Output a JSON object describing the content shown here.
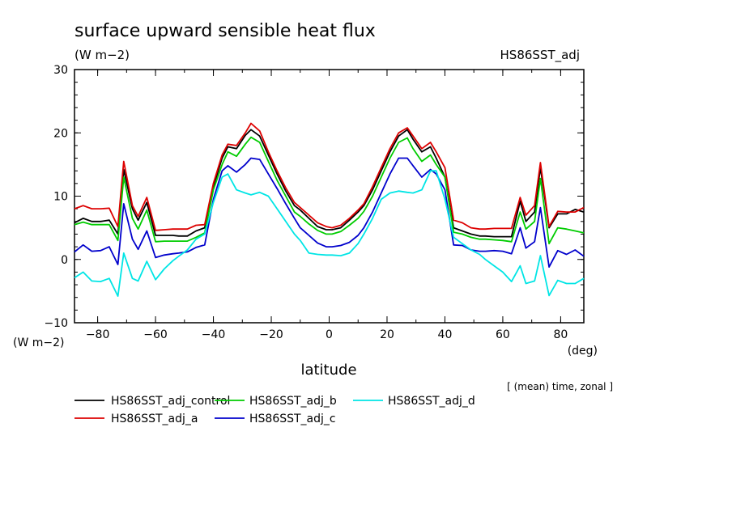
{
  "chart_data": {
    "type": "line",
    "title": "surface upward sensible heat flux",
    "units_label": "(W m−2)",
    "run_label": "HS86SST_adj",
    "y_unit_label": "(W m−2)",
    "x_unit_label": "(deg)",
    "xlabel": "latitude",
    "note": "[ (mean) time, zonal ]",
    "xlim": [
      -88,
      88
    ],
    "ylim": [
      -10,
      30
    ],
    "x_ticks": [
      -80,
      -60,
      -40,
      -20,
      0,
      20,
      40,
      60,
      80
    ],
    "x_tick_labels": [
      "−80",
      "−60",
      "−40",
      "−20",
      "0",
      "20",
      "40",
      "60",
      "80"
    ],
    "y_ticks": [
      -10,
      0,
      10,
      20,
      30
    ],
    "y_tick_labels": [
      "−10",
      "0",
      "10",
      "20",
      "30"
    ],
    "grid": false,
    "legend_position": "below-left",
    "x": [
      -88,
      -85,
      -82,
      -79,
      -76,
      -73,
      -71,
      -68,
      -66,
      -63,
      -60,
      -57,
      -54,
      -52,
      -49,
      -46,
      -43,
      -40,
      -37,
      -35,
      -32,
      -29,
      -27,
      -24,
      -21,
      -18,
      -15,
      -12,
      -10,
      -7,
      -4,
      -1,
      1,
      4,
      7,
      10,
      12,
      15,
      18,
      21,
      24,
      27,
      29,
      32,
      35,
      37,
      40,
      43,
      46,
      49,
      52,
      54,
      57,
      60,
      63,
      66,
      68,
      71,
      73,
      76,
      79,
      82,
      85,
      88
    ],
    "series": [
      {
        "name": "HS86SST_adj_control",
        "color": "#000000",
        "values": [
          5.8,
          6.5,
          6.0,
          6.0,
          6.2,
          4.0,
          14.2,
          8.0,
          6.2,
          9.0,
          3.8,
          3.8,
          3.8,
          3.7,
          3.7,
          4.5,
          5.0,
          11.5,
          16.0,
          17.8,
          17.5,
          19.6,
          20.5,
          19.5,
          16.5,
          13.5,
          10.8,
          8.5,
          7.8,
          6.5,
          5.2,
          4.7,
          4.7,
          5.0,
          6.2,
          7.5,
          8.5,
          11.0,
          14.0,
          17.0,
          19.5,
          20.5,
          19.0,
          17.0,
          17.8,
          16.0,
          13.0,
          5.0,
          4.5,
          4.0,
          3.7,
          3.7,
          3.6,
          3.6,
          3.6,
          9.2,
          6.0,
          7.5,
          14.5,
          5.0,
          7.2,
          7.2,
          7.9,
          7.5
        ]
      },
      {
        "name": "HS86SST_adj_a",
        "color": "#dd0000",
        "values": [
          8.0,
          8.5,
          8.0,
          8.0,
          8.1,
          5.2,
          15.5,
          8.5,
          6.8,
          9.8,
          4.6,
          4.7,
          4.8,
          4.8,
          4.8,
          5.4,
          5.5,
          12.0,
          16.5,
          18.2,
          18.0,
          20.0,
          21.5,
          20.3,
          17.0,
          14.0,
          11.3,
          9.0,
          8.2,
          7.0,
          5.8,
          5.2,
          5.0,
          5.4,
          6.5,
          7.8,
          8.8,
          11.5,
          14.5,
          17.5,
          20.0,
          20.8,
          19.5,
          17.5,
          18.5,
          17.0,
          14.5,
          6.2,
          5.8,
          5.0,
          4.8,
          4.8,
          4.9,
          4.9,
          4.9,
          9.8,
          7.0,
          8.5,
          15.3,
          5.2,
          7.6,
          7.5,
          7.5,
          8.2
        ]
      },
      {
        "name": "HS86SST_adj_b",
        "color": "#00cc00",
        "values": [
          5.5,
          5.9,
          5.5,
          5.5,
          5.5,
          3.0,
          13.0,
          6.5,
          4.8,
          7.8,
          2.8,
          2.9,
          2.9,
          2.9,
          2.9,
          3.5,
          4.2,
          11.0,
          15.0,
          17.0,
          16.3,
          18.2,
          19.3,
          18.5,
          15.5,
          12.5,
          10.0,
          7.5,
          6.8,
          5.6,
          4.6,
          4.0,
          4.0,
          4.4,
          5.4,
          6.5,
          7.6,
          10.0,
          13.0,
          16.0,
          18.5,
          19.2,
          17.5,
          15.5,
          16.5,
          15.0,
          13.0,
          4.3,
          4.0,
          3.5,
          3.2,
          3.2,
          3.1,
          3.0,
          2.8,
          7.5,
          4.8,
          6.0,
          12.8,
          2.5,
          5.0,
          4.8,
          4.5,
          4.2
        ]
      },
      {
        "name": "HS86SST_adj_c",
        "color": "#0000cc",
        "values": [
          1.2,
          2.3,
          1.3,
          1.4,
          2.0,
          -0.8,
          8.8,
          3.2,
          1.6,
          4.5,
          0.3,
          0.7,
          0.9,
          1.0,
          1.2,
          1.9,
          2.3,
          9.5,
          14.0,
          14.8,
          13.8,
          15.0,
          16.0,
          15.8,
          13.5,
          11.2,
          8.8,
          6.5,
          5.0,
          3.8,
          2.6,
          2.0,
          2.0,
          2.2,
          2.7,
          3.8,
          5.0,
          7.5,
          10.5,
          13.5,
          16.0,
          16.0,
          14.8,
          13.0,
          14.2,
          13.5,
          11.0,
          2.3,
          2.2,
          1.5,
          1.3,
          1.3,
          1.4,
          1.3,
          0.9,
          5.0,
          1.8,
          2.8,
          8.2,
          -1.2,
          1.4,
          0.8,
          1.5,
          0.5
        ]
      },
      {
        "name": "HS86SST_adj_d",
        "color": "#00e5e5",
        "values": [
          -2.9,
          -2.0,
          -3.4,
          -3.5,
          -3.0,
          -5.8,
          1.0,
          -3.0,
          -3.4,
          -0.3,
          -3.2,
          -1.5,
          -0.2,
          0.5,
          1.5,
          3.2,
          4.0,
          9.0,
          13.0,
          13.5,
          11.0,
          10.5,
          10.2,
          10.6,
          10.0,
          8.0,
          6.0,
          4.0,
          3.0,
          1.0,
          0.8,
          0.7,
          0.7,
          0.6,
          1.0,
          2.5,
          4.0,
          6.5,
          9.5,
          10.5,
          10.8,
          10.6,
          10.5,
          11.0,
          14.0,
          14.0,
          9.5,
          3.5,
          2.5,
          1.5,
          0.8,
          0.0,
          -1.0,
          -2.0,
          -3.5,
          -1.0,
          -3.8,
          -3.4,
          0.6,
          -5.7,
          -3.3,
          -3.8,
          -3.8,
          -3.0
        ]
      }
    ]
  }
}
